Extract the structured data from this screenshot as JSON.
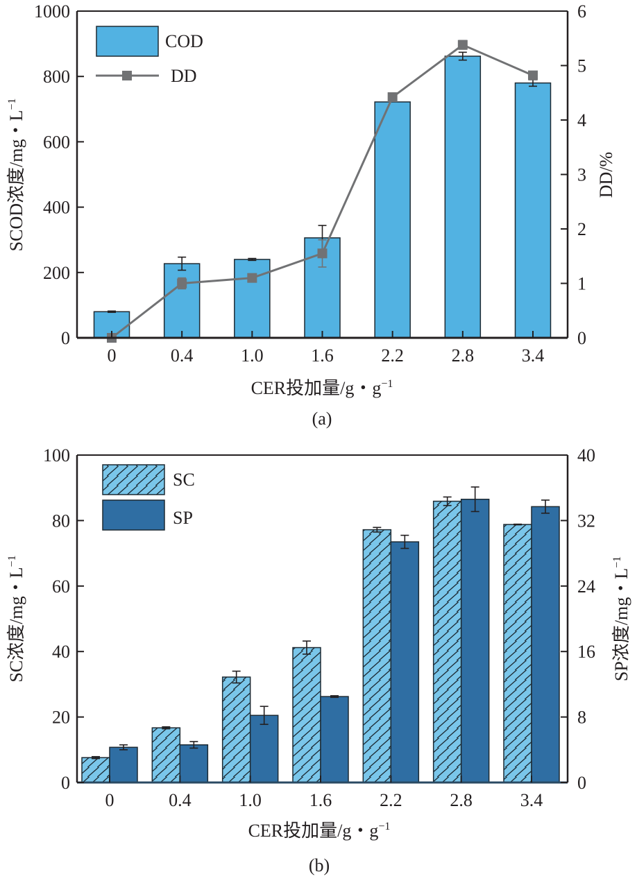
{
  "chart_data": [
    {
      "panel": "a",
      "type": "bar",
      "caption": "(a)",
      "xlabel": "CER投加量/g・g",
      "xlabel_sup": "−1",
      "ylabel": "SCOD浓度/mg・L",
      "ylabel_sup": "−1",
      "y2label": "DD/%",
      "categories": [
        "0",
        "0.4",
        "1.0",
        "1.6",
        "2.2",
        "2.8",
        "3.4"
      ],
      "ylim": [
        0,
        1000
      ],
      "yticks": [
        0,
        200,
        400,
        600,
        800,
        1000
      ],
      "y2lim": [
        0,
        6
      ],
      "y2ticks": [
        0,
        1,
        2,
        3,
        4,
        5,
        6
      ],
      "grid": false,
      "legend_position": "top-left",
      "series": [
        {
          "name": "COD",
          "kind": "bar",
          "axis": "left",
          "color": "#52b2e2",
          "values": [
            80,
            227,
            240,
            306,
            722,
            862,
            780
          ],
          "errors": [
            2,
            20,
            3,
            38,
            0,
            12,
            10
          ]
        },
        {
          "name": "DD",
          "kind": "line",
          "marker": "square",
          "axis": "right",
          "color": "#717274",
          "values": [
            0,
            1.0,
            1.1,
            1.55,
            4.42,
            5.38,
            4.82
          ],
          "errors": [
            0.05,
            0.1,
            0.0,
            0.25,
            0.0,
            0.08,
            0.0
          ]
        }
      ]
    },
    {
      "panel": "b",
      "type": "bar",
      "caption": "(b)",
      "xlabel": "CER投加量/g・g",
      "xlabel_sup": "−1",
      "ylabel": "SC浓度/mg・L",
      "ylabel_sup": "−1",
      "y2label": "SP浓度/mg・L",
      "y2label_sup": "−1",
      "categories": [
        "0",
        "0.4",
        "1.0",
        "1.6",
        "2.2",
        "2.8",
        "3.4"
      ],
      "ylim": [
        0,
        100
      ],
      "yticks": [
        0,
        20,
        40,
        60,
        80,
        100
      ],
      "y2lim": [
        0,
        40
      ],
      "y2ticks": [
        0,
        8,
        16,
        24,
        32,
        40
      ],
      "grid": false,
      "legend_position": "top-left",
      "series": [
        {
          "name": "SC",
          "kind": "bar",
          "pattern": "hatch",
          "axis": "left",
          "color": "#7ac6ea",
          "values": [
            7.6,
            16.7,
            32.2,
            41.2,
            77.2,
            85.9,
            78.8
          ],
          "errors": [
            0.3,
            0.3,
            1.8,
            2.0,
            0.7,
            1.3,
            0.1
          ]
        },
        {
          "name": "SP",
          "kind": "bar",
          "axis": "right",
          "color": "#2f6ea3",
          "values": [
            4.3,
            4.6,
            8.2,
            10.5,
            29.4,
            34.6,
            33.7
          ],
          "errors": [
            0.3,
            0.4,
            1.1,
            0.1,
            0.8,
            1.5,
            0.8
          ]
        }
      ]
    }
  ]
}
